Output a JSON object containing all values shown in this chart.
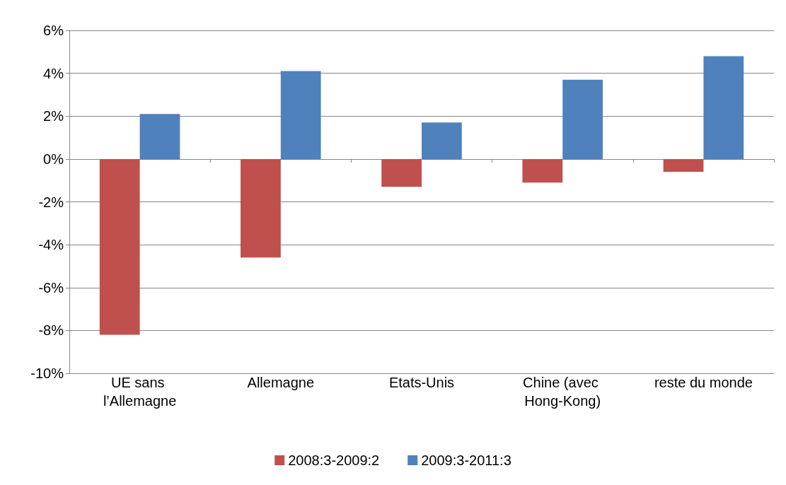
{
  "chart_data": {
    "type": "bar",
    "categories": [
      "UE sans l’Allemagne",
      "Allemagne",
      "Etats-Unis",
      "Chine (avec Hong-Kong)",
      "reste du monde"
    ],
    "series": [
      {
        "name": "2008:3-2009:2",
        "color": "#c0504d",
        "values": [
          -8.2,
          -4.6,
          -1.3,
          -1.1,
          -0.6
        ]
      },
      {
        "name": "2009:3-2011:3",
        "color": "#4f81bd",
        "values": [
          2.1,
          4.1,
          1.7,
          3.7,
          4.8
        ]
      }
    ],
    "ylim": [
      -10,
      6
    ],
    "yticks": [
      {
        "value": -10,
        "label": "-10%"
      },
      {
        "value": -8,
        "label": "-8%"
      },
      {
        "value": -6,
        "label": "-6%"
      },
      {
        "value": -4,
        "label": "-4%"
      },
      {
        "value": -2,
        "label": "-2%"
      },
      {
        "value": 0,
        "label": "0%"
      },
      {
        "value": 2,
        "label": "2%"
      },
      {
        "value": 4,
        "label": "4%"
      },
      {
        "value": 6,
        "label": "6%"
      }
    ],
    "grid": "y",
    "legend": "bottom"
  }
}
